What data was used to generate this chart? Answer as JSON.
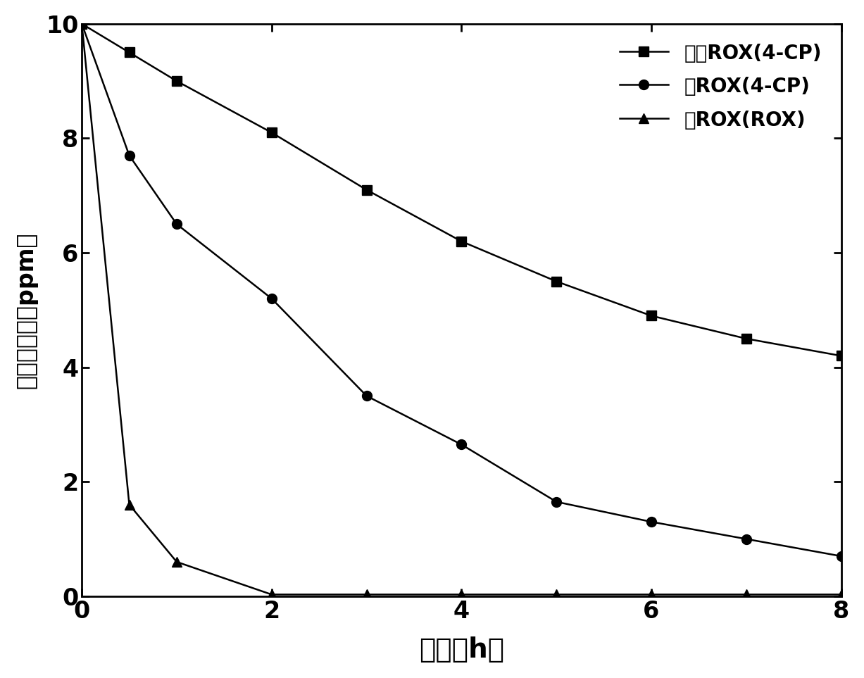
{
  "series1_label": "不加ROX(4-CP)",
  "series2_label": "加ROX(4-CP)",
  "series3_label": "加ROX(ROX)",
  "series1_x": [
    0,
    0.5,
    1,
    2,
    3,
    4,
    5,
    6,
    7,
    8
  ],
  "series1_y": [
    10.0,
    9.5,
    9.0,
    8.1,
    7.1,
    6.2,
    5.5,
    4.9,
    4.5,
    4.2
  ],
  "series2_x": [
    0,
    0.5,
    1,
    2,
    3,
    4,
    5,
    6,
    7,
    8
  ],
  "series2_y": [
    10.0,
    7.7,
    6.5,
    5.2,
    3.5,
    2.65,
    1.65,
    1.3,
    1.0,
    0.7
  ],
  "series3_x": [
    0,
    0.5,
    1,
    2,
    3,
    4,
    5,
    6,
    7,
    8
  ],
  "series3_y": [
    10.0,
    1.6,
    0.6,
    0.03,
    0.03,
    0.03,
    0.03,
    0.03,
    0.03,
    0.03
  ],
  "xlabel": "时间（h）",
  "ylabel": "污染物浓度（ppm）",
  "xlim": [
    0,
    8
  ],
  "ylim": [
    0,
    10
  ],
  "xticks": [
    0,
    2,
    4,
    6,
    8
  ],
  "yticks": [
    0,
    2,
    4,
    6,
    8,
    10
  ],
  "line_color": "#000000",
  "marker_square": "s",
  "marker_circle": "o",
  "marker_triangle": "^",
  "markersize": 10,
  "linewidth": 1.8,
  "legend_fontsize": 20,
  "xlabel_fontsize": 28,
  "ylabel_fontsize": 24,
  "tick_fontsize": 24,
  "background_color": "#ffffff"
}
